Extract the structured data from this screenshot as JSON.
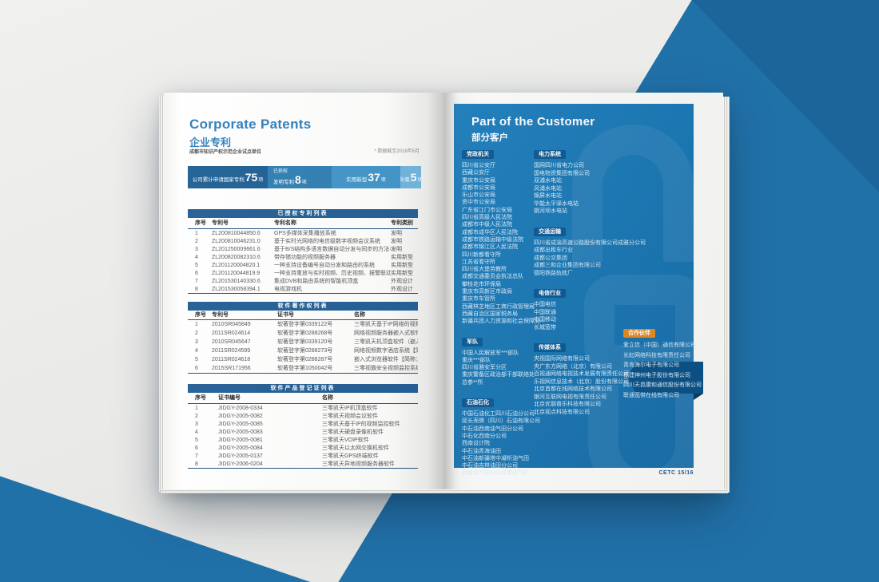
{
  "colors": {
    "brand_blue": "#2171a9",
    "panel_blue": "#1a77b4",
    "badge_blue": "#0d5a95",
    "badge_orange": "#e98a1e",
    "table_header_blue": "#1f5c94",
    "title_blue": "#2b7cba"
  },
  "left_page": {
    "title_en": "Corporate Patents",
    "title_zh": "企业专利",
    "note_left": "成都市知识产权示范企业试点单位",
    "note_right": "* 数据截至2016年6月",
    "stats_bar": {
      "segments": [
        {
          "label": "公司累计申请国家专利",
          "value": "75",
          "unit": "项"
        },
        {
          "topline": "已获权",
          "label": "发明专利",
          "value": "8",
          "unit": "项"
        },
        {
          "label": "实用新型",
          "value": "37",
          "unit": "项"
        },
        {
          "label": "外观",
          "value": "5",
          "unit": "项"
        }
      ]
    },
    "tables": [
      {
        "title": "已授权专利列表",
        "columns": [
          "序号",
          "专利号",
          "专利名称",
          "专利类别"
        ],
        "rows": [
          [
            "1",
            "ZL200810044850.6",
            "GPS多媒体采集播放系统",
            "发明"
          ],
          [
            "2",
            "ZL200810046231.0",
            "基于实时光网络的电信级数字视频会议系统",
            "发明"
          ],
          [
            "3",
            "ZL201250009661.6",
            "基于B/S结构多语言数据自动分发与同步的方法与系统",
            "发明"
          ],
          [
            "4",
            "ZL200820082310.6",
            "带存储功能的视频服务器",
            "实用新型"
          ],
          [
            "5",
            "ZL201120004820.1",
            "一种支持设备编号自动分发和路由的系统",
            "实用新型"
          ],
          [
            "6",
            "ZL201120044819.9",
            "一种支持重放与实时视频、历史视频、报警联动的系统",
            "实用新型"
          ],
          [
            "7",
            "ZL201530140330.6",
            "集成DVB和路由系统的智能机顶盒",
            "外观设计"
          ],
          [
            "8",
            "ZL201530058394.1",
            "电视游戏机",
            "外观设计"
          ]
        ]
      },
      {
        "title": "软件著作权列表",
        "columns": [
          "序号",
          "专利号",
          "证书号",
          "名称"
        ],
        "rows": [
          [
            "1",
            "2010SR045849",
            "软著登字第0339122号",
            "三零凯天基于IP网络的视频监控中心管理软件V1.4"
          ],
          [
            "2",
            "2011SR024614",
            "软著登字第0288268号",
            "网络视频服务器嵌入式软件【简称：视频服务器软件】V1.0"
          ],
          [
            "3",
            "2010SR045647",
            "软著登字第0339120号",
            "三零凯天机顶盒软件（嵌入式）V2.0"
          ],
          [
            "4",
            "2011SR024599",
            "软著登字第0288273号",
            "网络视频数字酒店系统【简称：网络视频酒店系统】V1.0"
          ],
          [
            "5",
            "2011SR024618",
            "软著登字第0288287号",
            "嵌入式浏览器软件【简称：嵌入式浏览器】V1.0"
          ],
          [
            "6",
            "2015SR171956",
            "软著登字第1050042号",
            "三零视霸安全视频监控系统软件【简称：安全视频监控软件】V2.0"
          ]
        ]
      },
      {
        "title": "软件产品登记证列表",
        "columns": [
          "序号",
          "证书编号",
          "名称"
        ],
        "rows": [
          [
            "1",
            "JIDGY-2008-0334",
            "三零凯天IP机顶盒软件"
          ],
          [
            "2",
            "JIDGY-2005-0082",
            "三零凯天视频会议软件"
          ],
          [
            "3",
            "JIDGY-2005-0085",
            "三零凯天基于IP的视频监控软件"
          ],
          [
            "4",
            "JIDGY-2005-0083",
            "三零凯天硬盘录像机软件"
          ],
          [
            "5",
            "JIDGY-2005-0081",
            "三零凯天VOIP软件"
          ],
          [
            "6",
            "JIDGY-2005-0084",
            "三零凯天以太网交换机软件"
          ],
          [
            "7",
            "JIDGY-2005-0137",
            "三零凯天GPS终端软件"
          ],
          [
            "8",
            "JIDGY-2006-0204",
            "三零凯天异地视频服务器软件"
          ]
        ]
      }
    ]
  },
  "right_page": {
    "title_en": "Part of the Customer",
    "title_zh": "部分客户",
    "page_number": "CETC 15/16",
    "customer_columns": [
      {
        "groups": [
          {
            "badge": "党政机关",
            "style": "blue",
            "items": [
              "四川省公安厅",
              "西藏公安厅",
              "重庆市公安局",
              "成都市公安局",
              "乐山市公安局",
              "资中市公安局",
              "广东省江门市公安局",
              "四川省高级人民法院",
              "成都市中级人民法院",
              "成都市成华区人民法院",
              "成都市铁路运输中级法院",
              "成都市锦江区人民法院",
              "四川新都看守所",
              "江苏省看守所",
              "四川省大堡劳教所",
              "成都交通委员会执法总队",
              "攀枝花市环保局",
              "重庆市高新区市政局",
              "重庆市车管所",
              "西藏林芝地区工商行政管理局",
              "西藏自治区国家税务局",
              "新疆兵团人力资源和社会保障局"
            ]
          },
          {
            "badge": "军队",
            "style": "blue",
            "items": [
              "中国人民解放军***部队",
              "重庆***部队",
              "四川省雅安军分区",
              "重庆警备区政治部干部联络处",
              "总参**所"
            ]
          },
          {
            "badge": "石油石化",
            "style": "blue",
            "items": [
              "中国石油化工四川石油分公司",
              "延长壳牌（四川）石油有限公司",
              "中石油西南油气田分公司",
              "中石化西南分公司",
              "西南设计院",
              "中石油青海油田",
              "中石油新疆塔中凝析油气田",
              "中石油吉林油田分公司",
              "西南油气田分公司重庆气矿"
            ]
          }
        ]
      },
      {
        "groups": [
          {
            "badge": "电力系统",
            "style": "blue",
            "items": [
              "国网四川省电力公司",
              "国电物资集团有限公司",
              "双浦水电站",
              "风浦水电站",
              "锦屏水电站",
              "华能太平驿水电站",
              "姚河坝水电站"
            ]
          },
          {
            "badge": "交通运输",
            "style": "blue",
            "items": [
              "四川省成渝高速公路股份有限公司成雅分公司",
              "成都出租车行业",
              "成都公交集团",
              "成都三和企业集团有限公司",
              "德阳铁路轨枕厂"
            ]
          },
          {
            "badge": "电信行业",
            "style": "blue",
            "items": [
              "中国电信",
              "中国联通",
              "中国移动",
              "长城宽带"
            ]
          },
          {
            "badge": "传媒体系",
            "style": "blue",
            "items": [
              "央视国际网络有限公司",
              "央广东方网络（北京）有限公司",
              "百视通网络电视技术发展有限责任公司",
              "乐视网信息技术（北京）股份有限公司",
              "北京首都在线网络技术有限公司",
              "银河互联网电视有限责任公司",
              "北京优朋普乐科技有限公司",
              "北京视点科技有限公司"
            ]
          }
        ]
      },
      {
        "groups": [
          {
            "badge": "合作伙伴",
            "style": "orange",
            "items": [
              "爱立信（中国）通信有限公司",
              "长虹网络科技有限责任公司",
              "青岛海尔电子有限公司",
              "福建神州电子股份有限公司",
              "四川天邑康和通信股份有限公司",
              "联通宽带在线有限公司"
            ]
          }
        ]
      }
    ]
  }
}
